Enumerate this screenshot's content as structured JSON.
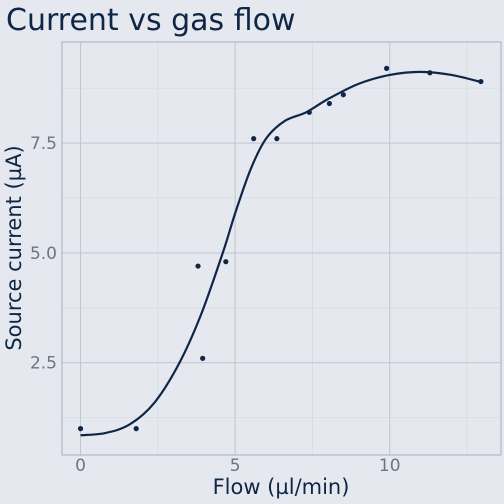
{
  "chart_data": {
    "type": "scatter",
    "title": "Current vs gas flow",
    "xlabel": "Flow (µl/min)",
    "ylabel": "Source current (µA)",
    "xlim": [
      -0.6,
      13.6
    ],
    "ylim": [
      0.4,
      9.8
    ],
    "xticks": [
      0,
      5,
      10
    ],
    "xtick_labels": [
      "0",
      "5",
      "10"
    ],
    "yticks": [
      2.5,
      5.0,
      7.5
    ],
    "ytick_labels": [
      "2.5",
      "5.0",
      "7.5"
    ],
    "grid": true,
    "colors": {
      "background": "#e5e9ef",
      "panel": "#e5e9ef",
      "grid_major": "#c3c8d0",
      "grid_minor": "#d7dbe2",
      "series": "#0f2647"
    },
    "series": [
      {
        "points": [
          {
            "x": 0.0,
            "y": 1.0
          },
          {
            "x": 1.8,
            "y": 1.0
          },
          {
            "x": 3.8,
            "y": 4.7
          },
          {
            "x": 3.95,
            "y": 2.6
          },
          {
            "x": 4.7,
            "y": 4.8
          },
          {
            "x": 5.6,
            "y": 7.6
          },
          {
            "x": 6.35,
            "y": 7.6
          },
          {
            "x": 7.4,
            "y": 8.2
          },
          {
            "x": 8.05,
            "y": 8.4
          },
          {
            "x": 8.5,
            "y": 8.6
          },
          {
            "x": 9.9,
            "y": 9.2
          },
          {
            "x": 11.3,
            "y": 9.1
          },
          {
            "x": 12.95,
            "y": 8.9
          }
        ],
        "smooth": [
          {
            "x": 0.0,
            "y": 0.85
          },
          {
            "x": 0.8,
            "y": 0.9
          },
          {
            "x": 1.6,
            "y": 1.1
          },
          {
            "x": 2.4,
            "y": 1.6
          },
          {
            "x": 3.2,
            "y": 2.5
          },
          {
            "x": 3.9,
            "y": 3.6
          },
          {
            "x": 4.6,
            "y": 5.0
          },
          {
            "x": 5.0,
            "y": 5.9
          },
          {
            "x": 5.5,
            "y": 6.9
          },
          {
            "x": 6.0,
            "y": 7.6
          },
          {
            "x": 6.6,
            "y": 8.0
          },
          {
            "x": 7.3,
            "y": 8.2
          },
          {
            "x": 8.0,
            "y": 8.5
          },
          {
            "x": 9.0,
            "y": 8.85
          },
          {
            "x": 10.0,
            "y": 9.05
          },
          {
            "x": 11.0,
            "y": 9.12
          },
          {
            "x": 12.0,
            "y": 9.05
          },
          {
            "x": 13.0,
            "y": 8.88
          }
        ]
      }
    ]
  }
}
